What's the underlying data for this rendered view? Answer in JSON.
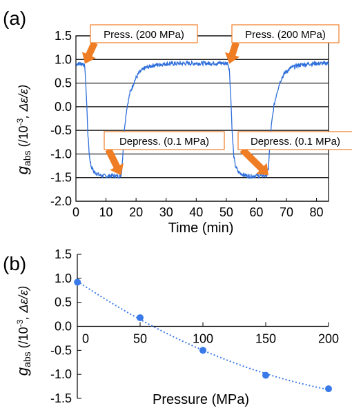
{
  "panels": {
    "a_label": "(a)",
    "b_label": "(b)"
  },
  "colors": {
    "trace": "#2f6fdb",
    "dot": "#3a7ae8",
    "grid": "#000000",
    "arrow": "#ef7d24",
    "callout_border": "#ef7d24"
  },
  "chart_data": [
    {
      "type": "line",
      "panel": "a",
      "xlabel": "Time (min)",
      "ylabel_symbol": "g",
      "ylabel_subscript": "abs",
      "ylabel_rest": " (/10",
      "ylabel_exp": "-3",
      "ylabel_tail": ", Δε/ε)",
      "xlim": [
        0,
        84
      ],
      "ylim": [
        -2.0,
        1.5
      ],
      "xticks": [
        0,
        10,
        20,
        30,
        40,
        50,
        60,
        70,
        80
      ],
      "xtick_labels": [
        "0",
        "10",
        "20",
        "30",
        "40",
        "50",
        "60",
        "70",
        "80"
      ],
      "yticks": [
        1.5,
        1.0,
        0.5,
        0.0,
        -0.5,
        -1.0,
        -1.5,
        -2.0
      ],
      "ytick_labels": [
        "1.5",
        "1.0",
        "0.5",
        "0.0",
        "-0.5",
        "-1.0",
        "-1.5",
        "-2.0"
      ],
      "grid": "horizontal",
      "series": [
        {
          "values": [
            [
              0,
              0.91
            ],
            [
              2.5,
              0.91
            ],
            [
              3,
              0.82
            ],
            [
              3.5,
              0.2
            ],
            [
              4,
              -0.6
            ],
            [
              4.5,
              -1.05
            ],
            [
              5,
              -1.25
            ],
            [
              6,
              -1.38
            ],
            [
              8,
              -1.45
            ],
            [
              10,
              -1.47
            ],
            [
              12,
              -1.46
            ],
            [
              14,
              -1.47
            ],
            [
              15,
              -1.46
            ],
            [
              15.3,
              -1.3
            ],
            [
              15.7,
              -0.9
            ],
            [
              16.2,
              -0.4
            ],
            [
              17,
              0.0
            ],
            [
              18,
              0.3
            ],
            [
              19.5,
              0.55
            ],
            [
              21,
              0.72
            ],
            [
              23,
              0.82
            ],
            [
              26,
              0.88
            ],
            [
              30,
              0.91
            ],
            [
              40,
              0.92
            ],
            [
              50,
              0.92
            ],
            [
              50.5,
              0.92
            ],
            [
              51,
              0.8
            ],
            [
              51.5,
              0.2
            ],
            [
              52,
              -0.6
            ],
            [
              52.5,
              -1.05
            ],
            [
              53,
              -1.25
            ],
            [
              54,
              -1.38
            ],
            [
              56,
              -1.45
            ],
            [
              58,
              -1.47
            ],
            [
              60,
              -1.46
            ],
            [
              62,
              -1.46
            ],
            [
              63.5,
              -1.45
            ],
            [
              64,
              -1.3
            ],
            [
              64.4,
              -0.9
            ],
            [
              65,
              -0.4
            ],
            [
              65.8,
              0.0
            ],
            [
              66.8,
              0.3
            ],
            [
              68,
              0.55
            ],
            [
              69.5,
              0.72
            ],
            [
              71.5,
              0.82
            ],
            [
              74,
              0.88
            ],
            [
              78,
              0.91
            ],
            [
              84,
              0.92
            ]
          ]
        }
      ],
      "annotations": [
        {
          "text": "Press. (200 MPa)",
          "x": 3,
          "y": 0.91
        },
        {
          "text": "Depress. (0.1 MPa)",
          "x": 15,
          "y": -1.45
        },
        {
          "text": "Press. (200 MPa)",
          "x": 51,
          "y": 0.91
        },
        {
          "text": "Depress. (0.1 MPa)",
          "x": 64,
          "y": -1.45
        }
      ]
    },
    {
      "type": "scatter",
      "panel": "b",
      "xlabel": "Pressure (MPa)",
      "ylabel_symbol": "g",
      "ylabel_subscript": "abs",
      "ylabel_rest": " (/10",
      "ylabel_exp": "-3",
      "ylabel_tail": ", Δε/ε)",
      "xlim": [
        0,
        200
      ],
      "ylim": [
        -1.5,
        1.5
      ],
      "xticks": [
        0,
        50,
        100,
        150,
        200
      ],
      "xtick_labels": [
        "0",
        "50",
        "100",
        "150",
        "200"
      ],
      "yticks": [
        1.5,
        1.0,
        0.5,
        0.0,
        -0.5,
        -1.0,
        -1.5
      ],
      "ytick_labels": [
        "1.5",
        "1.0",
        "0.5",
        "0.0",
        "-0.5",
        "-1.0",
        "-1.5"
      ],
      "grid": "none",
      "x": [
        0.1,
        50,
        100,
        150,
        200
      ],
      "series": [
        {
          "values": [
            0.92,
            0.18,
            -0.5,
            -1.02,
            -1.3
          ],
          "fit": "dotted-curve"
        }
      ]
    }
  ]
}
